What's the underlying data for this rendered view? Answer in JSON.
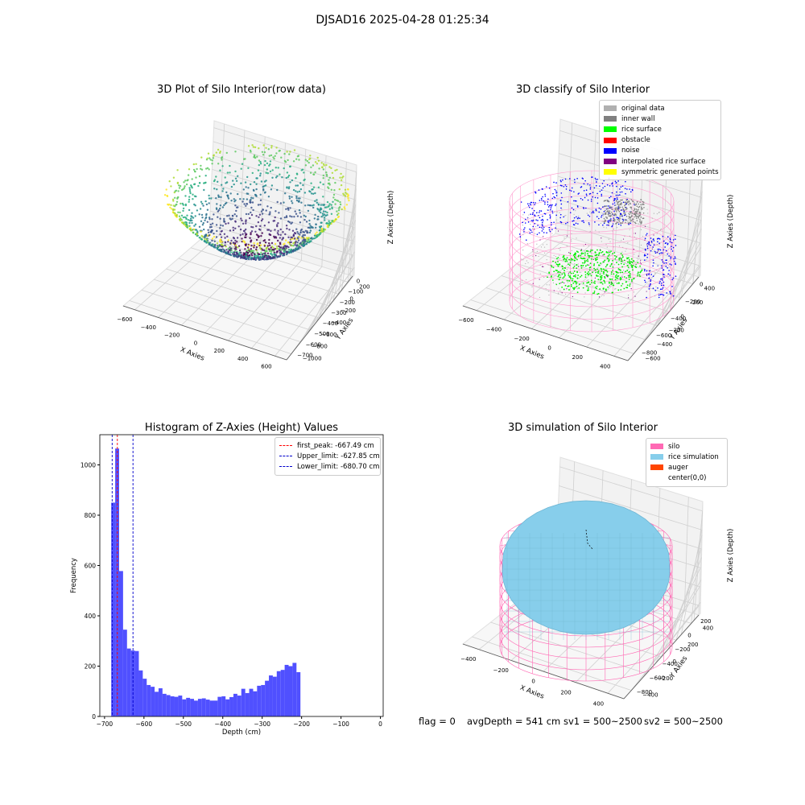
{
  "suptitle": "DJSAD16 2025-04-28 01:25:34",
  "chart_data": [
    {
      "type": "scatter",
      "title": "3D Plot of Silo Interior(row data)",
      "xlabel": "X Axies",
      "ylabel": "Y Axies",
      "zlabel": "Z Axies (Depth)",
      "xticks": [
        "−600",
        "−400",
        "−200",
        "0",
        "200",
        "400",
        "600"
      ],
      "yticks": [
        "200",
        "0",
        "−200",
        "−400",
        "−600",
        "−800",
        "−1000"
      ],
      "zticks": [
        "0",
        "−100",
        "−200",
        "−300",
        "−400",
        "−500",
        "−600",
        "−700"
      ],
      "colormap": "viridis",
      "grid": true
    },
    {
      "type": "scatter",
      "title": "3D classify of Silo Interior",
      "xlabel": "X Axies",
      "ylabel": "Y Axies",
      "zlabel": "Z Axies (Depth)",
      "xticks": [
        "−600",
        "−400",
        "−200",
        "0",
        "200",
        "400"
      ],
      "yticks": [
        "400",
        "200",
        "0",
        "−200",
        "−400",
        "−600"
      ],
      "zticks": [
        "0",
        "−200",
        "−400",
        "−600",
        "−800"
      ],
      "legend": [
        {
          "label": "original data",
          "color": "#b0b0b0"
        },
        {
          "label": "inner wall",
          "color": "#808080"
        },
        {
          "label": "rice surface",
          "color": "#00ff00"
        },
        {
          "label": "obstacle",
          "color": "#ff0000"
        },
        {
          "label": "noise",
          "color": "#0000ff"
        },
        {
          "label": "interpolated rice surface",
          "color": "#800080"
        },
        {
          "label": "symmetric generated points",
          "color": "#ffff00"
        }
      ],
      "legend_position": "upper right",
      "grid": true
    },
    {
      "type": "bar",
      "title": "Histogram of Z-Axies (Height) Values",
      "xlabel": "Depth (cm)",
      "ylabel": "Frequency",
      "bin_width": 10,
      "bin_start": -683,
      "values": [
        850,
        1065,
        578,
        345,
        270,
        262,
        260,
        183,
        150,
        125,
        118,
        98,
        112,
        90,
        85,
        80,
        78,
        83,
        68,
        74,
        70,
        63,
        70,
        72,
        67,
        63,
        63,
        78,
        80,
        68,
        77,
        90,
        83,
        110,
        93,
        110,
        100,
        122,
        125,
        142,
        163,
        158,
        180,
        185,
        205,
        200,
        213,
        176
      ],
      "xlim": [
        -712,
        7
      ],
      "ylim": [
        0,
        1120
      ],
      "xticks": [
        -700,
        -600,
        -500,
        -400,
        -300,
        -200,
        -100,
        0
      ],
      "xtick_labels": [
        "−700",
        "−600",
        "−500",
        "−400",
        "−300",
        "−200",
        "−100",
        "0"
      ],
      "yticks": [
        0,
        200,
        400,
        600,
        800,
        1000
      ],
      "bar_color": "#5050ff",
      "lines": [
        {
          "label": "first_peak: -667.49 cm",
          "x": -667.49,
          "color": "#ff0000"
        },
        {
          "label": "Upper_limit: -627.85 cm",
          "x": -627.85,
          "color": "#0000cc"
        },
        {
          "label": "Lower_limit: -680.70 cm",
          "x": -680.7,
          "color": "#0000cc"
        }
      ],
      "legend_position": "upper right",
      "grid": false
    },
    {
      "type": "surface",
      "title": "3D simulation of Silo Interior",
      "xlabel": "X Axies",
      "ylabel": "Y Axies",
      "zlabel": "Z Axies (Depth)",
      "xticks": [
        "−400",
        "−200",
        "0",
        "200",
        "400"
      ],
      "yticks": [
        "400",
        "200",
        "0",
        "−200",
        "−400"
      ],
      "zticks": [
        "200",
        "0",
        "−200",
        "−400",
        "−600",
        "−800"
      ],
      "legend": [
        {
          "label": "silo",
          "color": "#ff69b4"
        },
        {
          "label": "rice simulation",
          "color": "#87ceeb"
        },
        {
          "label": "auger",
          "color": "#ff4500"
        },
        {
          "label": "center(0,0)",
          "color": ""
        }
      ],
      "legend_position": "upper right",
      "grid": true
    }
  ],
  "status_line": {
    "flag": "flag = 0",
    "avg_depth": "avgDepth = 541 cm",
    "sv1": "sv1 = 500~2500",
    "sv2": "sv2 = 500~2500"
  }
}
